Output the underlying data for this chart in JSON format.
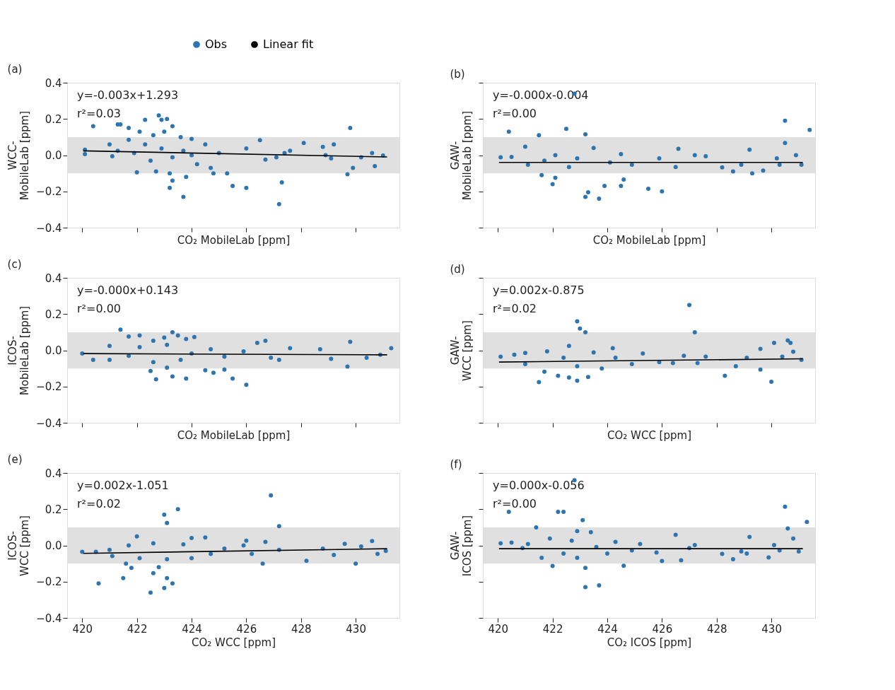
{
  "chart_data": [
    {
      "type": "scatter",
      "title": "(a)",
      "xlabel": "CO₂ MobileLab [ppm]",
      "ylabel": "WCC-\nMobileLab [ppm]",
      "xlim": [
        419.45,
        431.6
      ],
      "xticks": [
        420,
        422,
        424,
        426,
        428,
        430
      ],
      "ylim": [
        -0.4,
        0.4
      ],
      "yticks": [
        -0.4,
        -0.2,
        {
          "value": 0.0,
          "label": "0.0"
        },
        0.2,
        0.4
      ],
      "tick_labels": "y",
      "legend": "top",
      "grid": false,
      "bands": [
        {
          "axis": "y",
          "from": -0.1,
          "to": 0.1,
          "color": "#e0e0e0"
        }
      ],
      "annotations": [
        "y=-0.003x+1.293",
        "r²=0.03"
      ],
      "series": [
        {
          "name": "Obs",
          "type": "scatter",
          "marker": "circle",
          "color": "#2e75b0",
          "x": [
            420.4,
            421.3,
            421.4,
            421.7,
            422.3,
            422.8,
            422.9,
            423.1,
            423.3,
            422.1,
            423.0,
            429.8,
            422.0,
            422.7,
            423.2,
            423.3,
            423.2,
            423.7,
            423.8,
            424.8,
            425.3,
            425.5,
            426.0,
            427.2,
            427.3,
            429.7,
            429.9,
            430.7,
            428.1,
            429.2,
            428.8,
            426.5,
            427.6,
            420.1,
            420.1,
            421.0,
            421.1,
            421.7,
            422.3,
            422.5,
            422.6,
            423.6,
            424.0,
            424.2,
            424.5,
            424.7,
            425.0,
            426.0,
            426.7,
            427.1,
            428.9,
            429.1,
            430.2,
            430.6,
            431.0,
            427.4,
            423.7,
            422.9,
            421.3,
            421.9,
            423.3,
            424.0
          ],
          "values": [
            0.16,
            0.17,
            0.17,
            0.15,
            0.195,
            0.22,
            0.195,
            0.2,
            0.16,
            0.13,
            0.13,
            0.15,
            -0.095,
            -0.09,
            -0.1,
            -0.14,
            -0.18,
            -0.23,
            -0.12,
            -0.1,
            -0.1,
            -0.17,
            -0.18,
            -0.27,
            -0.15,
            -0.105,
            -0.07,
            -0.06,
            0.067,
            0.06,
            0.046,
            0.083,
            0.024,
            0.03,
            0.006,
            0.06,
            -0.006,
            0.085,
            0.06,
            -0.03,
            0.11,
            0.1,
            0.09,
            -0.05,
            0.06,
            -0.07,
            0.012,
            0.037,
            -0.024,
            -0.012,
            0.0,
            -0.018,
            -0.012,
            0.012,
            -0.002,
            0.012,
            0.024,
            0.037,
            0.024,
            0.012,
            -0.012,
            0.0
          ]
        },
        {
          "name": "Linear fit",
          "type": "line",
          "color": "#000000",
          "x": [
            420.04,
            431.15
          ],
          "values": [
            0.024,
            -0.01
          ]
        }
      ]
    },
    {
      "type": "scatter",
      "title": "(b)",
      "xlabel": "CO₂ MobileLab [ppm]",
      "ylabel": "GAW-\nMobileLab [ppm]",
      "xlim": [
        419.45,
        431.6
      ],
      "xticks": [
        420,
        422,
        424,
        426,
        428,
        430
      ],
      "ylim": [
        -0.4,
        0.4
      ],
      "yticks": [
        {
          "value": -0.4,
          "label": null
        },
        {
          "value": -0.2,
          "label": null
        },
        {
          "value": 0.0,
          "label": null
        },
        {
          "value": 0.2,
          "label": null
        },
        {
          "value": 0.4,
          "label": null
        }
      ],
      "tick_labels": false,
      "grid": false,
      "bands": [
        {
          "axis": "y",
          "from": -0.1,
          "to": 0.1,
          "color": "#e0e0e0"
        }
      ],
      "annotations": [
        "y=-0.000x-0.004",
        "r²=0.00"
      ],
      "series": [
        {
          "type": "scatter",
          "marker": "circle",
          "color": "#2e75b0",
          "x": [
            422.8,
            420.4,
            421.5,
            422.5,
            423.2,
            430.5,
            431.4,
            430.5,
            422.0,
            423.3,
            423.2,
            423.7,
            423.9,
            424.5,
            425.5,
            426.0,
            424.6,
            422.1,
            421.6,
            426.6,
            429.2,
            428.2,
            428.6,
            429.3,
            429.7,
            420.1,
            420.5,
            421.0,
            421.1,
            421.7,
            422.1,
            422.6,
            422.9,
            423.5,
            424.1,
            424.5,
            424.9,
            425.9,
            426.5,
            427.2,
            427.6,
            428.9,
            430.2,
            430.9,
            431.1,
            430.3
          ],
          "values": [
            0.34,
            0.13,
            0.11,
            0.145,
            0.115,
            0.19,
            0.14,
            0.067,
            -0.16,
            -0.205,
            -0.23,
            -0.24,
            -0.17,
            -0.17,
            -0.185,
            -0.2,
            -0.135,
            -0.125,
            -0.11,
            0.035,
            0.03,
            -0.067,
            -0.09,
            -0.1,
            -0.085,
            -0.012,
            -0.01,
            0.047,
            -0.053,
            -0.03,
            0.0,
            -0.065,
            -0.018,
            0.04,
            -0.04,
            0.006,
            -0.053,
            -0.018,
            -0.065,
            0.0,
            -0.006,
            -0.053,
            -0.018,
            0.0,
            -0.053,
            -0.053
          ]
        },
        {
          "type": "line",
          "color": "#000000",
          "x": [
            420.04,
            431.15
          ],
          "values": [
            -0.04,
            -0.04
          ]
        }
      ]
    },
    {
      "type": "scatter",
      "title": "(c)",
      "xlabel": "CO₂ MobileLab [ppm]",
      "ylabel": "ICOS-\nMobileLab [ppm]",
      "xlim": [
        419.45,
        431.6
      ],
      "xticks": [
        420,
        422,
        424,
        426,
        428,
        430
      ],
      "ylim": [
        -0.4,
        0.4
      ],
      "yticks": [
        -0.4,
        -0.2,
        {
          "value": 0.0,
          "label": "0.0"
        },
        0.2,
        0.4
      ],
      "tick_labels": "y",
      "grid": false,
      "bands": [
        {
          "axis": "y",
          "from": -0.1,
          "to": 0.1,
          "color": "#e0e0e0"
        }
      ],
      "annotations": [
        "y=-0.000x+0.143",
        "r²=0.00"
      ],
      "series": [
        {
          "type": "scatter",
          "marker": "circle",
          "color": "#2e75b0",
          "x": [
            421.4,
            421.7,
            422.1,
            422.6,
            423.0,
            423.3,
            423.5,
            423.8,
            424.1,
            426.4,
            426.7,
            427.6,
            429.8,
            431.3,
            422.7,
            423.3,
            423.8,
            425.5,
            426.0,
            424.8,
            424.5,
            422.5,
            423.1,
            429.7,
            420.4,
            425.2,
            420.0,
            421.0,
            421.0,
            421.7,
            422.1,
            422.6,
            423.1,
            423.6,
            424.0,
            424.7,
            425.2,
            425.9,
            426.9,
            427.2,
            428.7,
            429.1,
            430.4,
            430.9
          ],
          "values": [
            0.114,
            0.076,
            0.082,
            0.053,
            0.07,
            0.1,
            0.082,
            0.062,
            0.073,
            0.041,
            0.053,
            0.012,
            0.047,
            0.012,
            -0.16,
            -0.144,
            -0.156,
            -0.156,
            -0.19,
            -0.124,
            -0.11,
            -0.114,
            -0.096,
            -0.09,
            -0.053,
            -0.106,
            -0.018,
            0.024,
            -0.053,
            -0.03,
            0.018,
            -0.065,
            0.03,
            -0.053,
            -0.018,
            0.006,
            -0.035,
            -0.006,
            -0.041,
            -0.053,
            0.006,
            -0.047,
            -0.041,
            -0.024
          ]
        },
        {
          "type": "line",
          "color": "#000000",
          "x": [
            420.04,
            431.15
          ],
          "values": [
            -0.018,
            -0.025
          ]
        }
      ]
    },
    {
      "type": "scatter",
      "title": "(d)",
      "xlabel": "CO₂ WCC [ppm]",
      "ylabel": "GAW-\nWCC [ppm]",
      "xlim": [
        419.45,
        431.6
      ],
      "xticks": [
        420,
        422,
        424,
        426,
        428,
        430
      ],
      "ylim": [
        -0.4,
        0.4
      ],
      "yticks": [
        {
          "value": -0.4,
          "label": null
        },
        {
          "value": -0.2,
          "label": null
        },
        {
          "value": 0.0,
          "label": null
        },
        {
          "value": 0.2,
          "label": null
        },
        {
          "value": 0.4,
          "label": null
        }
      ],
      "tick_labels": false,
      "grid": false,
      "bands": [
        {
          "axis": "y",
          "from": -0.1,
          "to": 0.1,
          "color": "#e0e0e0"
        }
      ],
      "annotations": [
        "y=0.002x-0.875",
        "r²=0.02"
      ],
      "series": [
        {
          "type": "scatter",
          "marker": "circle",
          "color": "#2e75b0",
          "x": [
            427.0,
            422.9,
            423.0,
            423.2,
            427.2,
            430.1,
            430.6,
            430.7,
            422.6,
            424.2,
            421.5,
            422.2,
            422.6,
            422.9,
            423.3,
            428.3,
            430.0,
            429.6,
            420.1,
            420.6,
            429.6,
            430.8,
            421.0,
            421.0,
            421.7,
            421.8,
            422.4,
            422.9,
            423.5,
            423.8,
            424.3,
            424.9,
            425.3,
            425.9,
            426.4,
            426.8,
            427.3,
            427.6,
            428.7,
            429.1,
            430.4,
            431.1
          ],
          "values": [
            0.25,
            0.16,
            0.12,
            0.1,
            0.1,
            0.041,
            0.055,
            0.041,
            0.024,
            0.012,
            -0.176,
            -0.14,
            -0.15,
            -0.168,
            -0.147,
            -0.14,
            -0.174,
            -0.106,
            -0.035,
            -0.024,
            0.008,
            -0.008,
            -0.015,
            -0.076,
            -0.118,
            -0.006,
            -0.041,
            -0.088,
            -0.012,
            -0.1,
            -0.041,
            -0.076,
            -0.018,
            -0.065,
            -0.07,
            -0.03,
            -0.07,
            -0.035,
            -0.088,
            -0.041,
            -0.035,
            -0.053
          ]
        },
        {
          "type": "line",
          "color": "#000000",
          "x": [
            420.04,
            431.15
          ],
          "values": [
            -0.065,
            -0.047
          ]
        }
      ]
    },
    {
      "type": "scatter",
      "title": "(e)",
      "xlabel": "CO₂ WCC [ppm]",
      "ylabel": "ICOS-\nWCC [ppm]",
      "xlim": [
        419.45,
        431.6
      ],
      "xticks": [
        420,
        422,
        424,
        426,
        428,
        430
      ],
      "ylim": [
        -0.4,
        0.4
      ],
      "yticks": [
        -0.4,
        -0.2,
        {
          "value": 0.0,
          "label": "0.0"
        },
        0.2,
        0.4
      ],
      "grid": false,
      "bands": [
        {
          "axis": "y",
          "from": -0.1,
          "to": 0.1,
          "color": "#e0e0e0"
        }
      ],
      "annotations": [
        "y=0.002x-1.051",
        "r²=0.02"
      ],
      "series": [
        {
          "type": "scatter",
          "marker": "circle",
          "color": "#2e75b0",
          "x": [
            426.9,
            423.5,
            423.0,
            423.1,
            427.2,
            420.6,
            421.5,
            422.5,
            423.0,
            423.3,
            423.1,
            422.6,
            422.8,
            421.8,
            421.6,
            426.6,
            428.2,
            430.0,
            430.6,
            429.6,
            424.5,
            422.0,
            424.0,
            426.0,
            426.7,
            420.0,
            420.5,
            421.0,
            421.1,
            421.7,
            422.1,
            422.6,
            423.1,
            423.7,
            424.0,
            424.7,
            425.2,
            425.9,
            426.2,
            427.2,
            428.8,
            429.2,
            430.2,
            430.8,
            431.1
          ],
          "values": [
            0.276,
            0.2,
            0.17,
            0.124,
            0.106,
            -0.21,
            -0.18,
            -0.26,
            -0.235,
            -0.21,
            -0.18,
            -0.153,
            -0.12,
            -0.124,
            -0.1,
            -0.1,
            -0.085,
            -0.1,
            0.024,
            0.009,
            0.044,
            0.05,
            0.041,
            0.026,
            0.02,
            -0.035,
            -0.035,
            -0.024,
            -0.059,
            0.0,
            -0.07,
            0.012,
            -0.076,
            0.006,
            -0.07,
            -0.047,
            -0.018,
            0.0,
            -0.047,
            -0.024,
            -0.018,
            -0.053,
            -0.006,
            -0.047,
            -0.03
          ]
        },
        {
          "type": "line",
          "color": "#000000",
          "x": [
            420.04,
            431.15
          ],
          "values": [
            -0.044,
            -0.018
          ]
        }
      ]
    },
    {
      "type": "scatter",
      "title": "(f)",
      "xlabel": "CO₂ ICOS [ppm]",
      "ylabel": "GAW-\nICOS [ppm]",
      "xlim": [
        419.45,
        431.6
      ],
      "xticks": [
        420,
        422,
        424,
        426,
        428,
        430
      ],
      "ylim": [
        -0.4,
        0.4
      ],
      "yticks": [
        {
          "value": -0.4,
          "label": null
        },
        {
          "value": -0.2,
          "label": null
        },
        {
          "value": 0.0,
          "label": null
        },
        {
          "value": 0.2,
          "label": null
        },
        {
          "value": 0.4,
          "label": null
        }
      ],
      "tick_labels": "x",
      "grid": false,
      "bands": [
        {
          "axis": "y",
          "from": -0.1,
          "to": 0.1,
          "color": "#e0e0e0"
        }
      ],
      "annotations": [
        "y=0.000x-0.056",
        "r²=0.00"
      ],
      "series": [
        {
          "type": "scatter",
          "marker": "circle",
          "color": "#2e75b0",
          "x": [
            422.8,
            422.2,
            422.4,
            420.4,
            423.1,
            421.4,
            430.5,
            431.3,
            430.6,
            426.5,
            422.9,
            423.4,
            420.1,
            420.5,
            423.2,
            423.7,
            423.2,
            424.6,
            422.0,
            426.0,
            426.7,
            428.6,
            429.9,
            429.2,
            430.8,
            428.2,
            420.9,
            421.1,
            421.6,
            421.9,
            422.4,
            422.7,
            422.9,
            423.6,
            424.0,
            424.3,
            424.9,
            425.2,
            425.8,
            427.0,
            427.2,
            428.9,
            429.1,
            430.1,
            430.3,
            431.0
          ],
          "values": [
            0.36,
            0.185,
            0.185,
            0.185,
            0.14,
            0.1,
            0.214,
            0.13,
            0.094,
            0.059,
            0.079,
            0.073,
            0.012,
            0.016,
            -0.23,
            -0.22,
            -0.124,
            -0.112,
            -0.113,
            -0.086,
            -0.082,
            -0.076,
            -0.066,
            0.047,
            0.038,
            -0.047,
            -0.015,
            0.008,
            -0.068,
            0.038,
            -0.045,
            0.026,
            -0.068,
            -0.009,
            -0.045,
            0.02,
            -0.027,
            0.008,
            -0.039,
            -0.015,
            0.002,
            -0.033,
            -0.045,
            0.002,
            -0.027,
            -0.033
          ]
        },
        {
          "type": "line",
          "color": "#000000",
          "x": [
            420.04,
            431.15
          ],
          "values": [
            -0.018,
            -0.018
          ]
        }
      ]
    }
  ]
}
